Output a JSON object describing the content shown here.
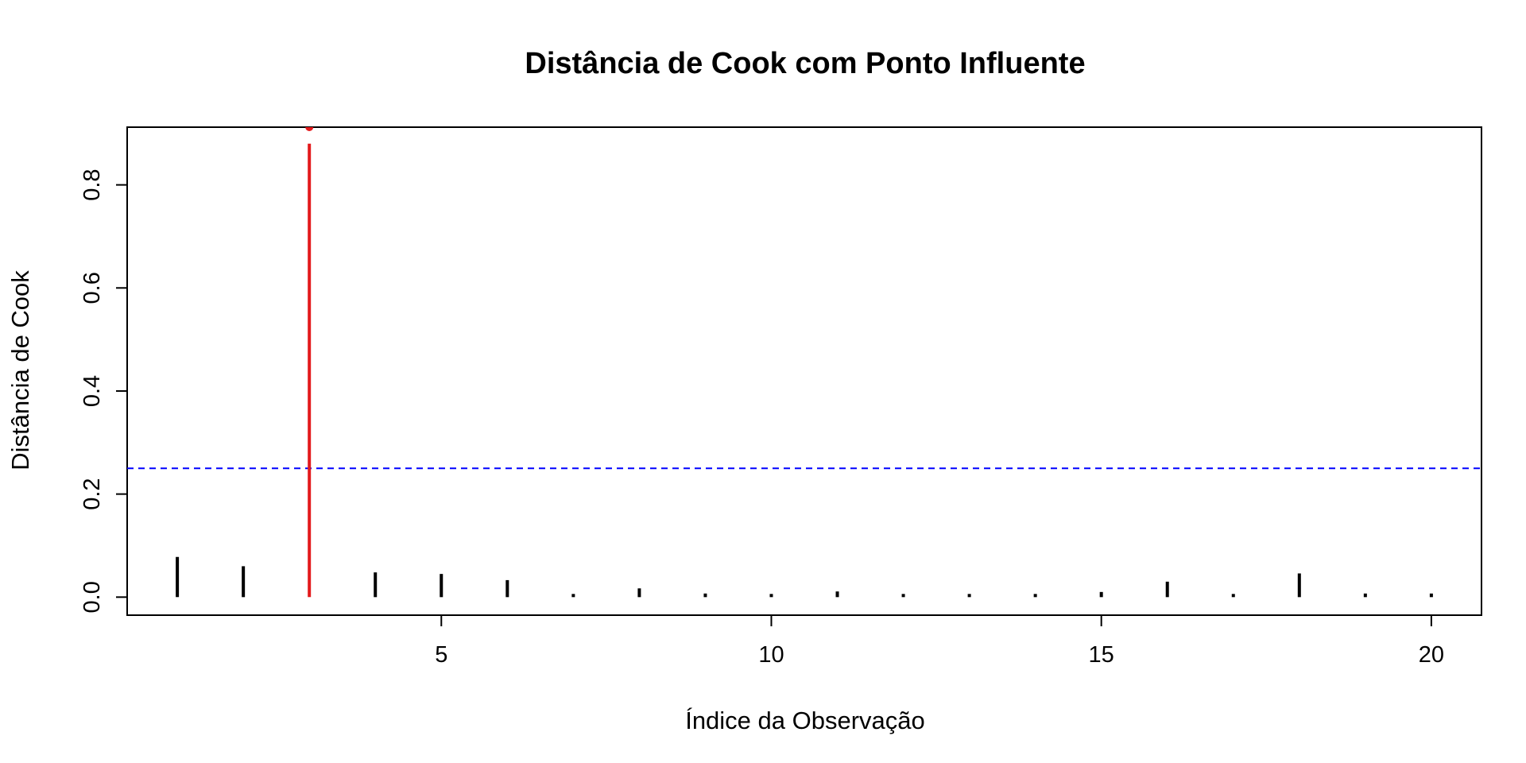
{
  "chart_data": {
    "type": "bar",
    "title": "Distância de Cook com Ponto Influente",
    "xlabel": "Índice da Observação",
    "ylabel": "Distância de Cook",
    "x": [
      1,
      2,
      3,
      4,
      5,
      6,
      7,
      8,
      9,
      10,
      11,
      12,
      13,
      14,
      15,
      16,
      17,
      18,
      19,
      20
    ],
    "values": [
      0.078,
      0.06,
      0.88,
      0.048,
      0.045,
      0.033,
      0.005,
      0.017,
      0.007,
      0.004,
      0.011,
      0.002,
      0.002,
      0.002,
      0.01,
      0.03,
      0.004,
      0.046,
      0.007,
      0.007
    ],
    "highlight_index": 3,
    "highlight_point": 0.912,
    "threshold": 0.25,
    "xlim": [
      0.24,
      20.76
    ],
    "ylim": [
      -0.035,
      0.912
    ],
    "xticks": [
      5,
      10,
      15,
      20
    ],
    "yticks": [
      0.0,
      0.2,
      0.4,
      0.6,
      0.8
    ],
    "ytick_labels": [
      "0.0",
      "0.2",
      "0.4",
      "0.6",
      "0.8"
    ],
    "grid": false,
    "colors": {
      "bars": "#000000",
      "highlight": "#e31a1c",
      "threshold": "#0000ff",
      "frame": "#000000"
    }
  }
}
